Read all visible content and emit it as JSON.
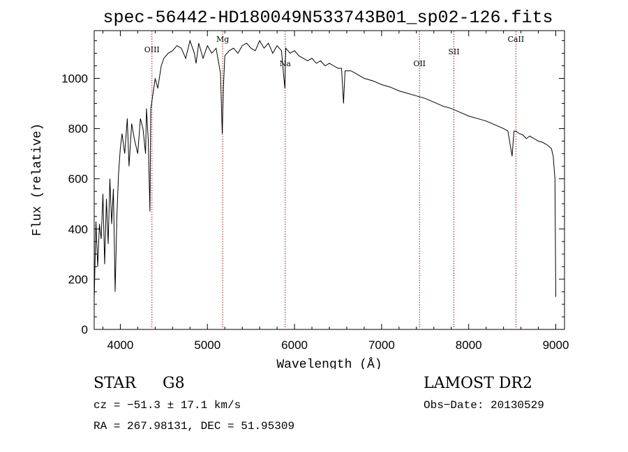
{
  "title": "spec-56442-HD180049N533743B01_sp02-126.fits",
  "chart_data": {
    "type": "line",
    "title": "spec-56442-HD180049N533743B01_sp02-126.fits",
    "xlabel": "Wavelength (Å)",
    "ylabel": "Flux (relative)",
    "xlim": [
      3700,
      9100
    ],
    "ylim": [
      0,
      1190
    ],
    "xticks": [
      4000,
      5000,
      6000,
      7000,
      8000,
      9000
    ],
    "yticks": [
      0,
      200,
      400,
      600,
      800,
      1000
    ],
    "grid": false,
    "line_color": "#000000",
    "marker_color": "#8b1a1a",
    "series": [
      {
        "x": [
          3700,
          3720,
          3740,
          3760,
          3780,
          3800,
          3820,
          3840,
          3860,
          3880,
          3900,
          3920,
          3940,
          3960,
          3980,
          4000,
          4020,
          4050,
          4080,
          4100,
          4130,
          4160,
          4200,
          4230,
          4260,
          4290,
          4300,
          4320,
          4340,
          4350,
          4380,
          4400,
          4430,
          4470,
          4500,
          4550,
          4600,
          4650,
          4700,
          4750,
          4800,
          4850,
          4870,
          4900,
          4950,
          5000,
          5050,
          5100,
          5150,
          5170,
          5183,
          5200,
          5250,
          5300,
          5350,
          5400,
          5450,
          5500,
          5550,
          5600,
          5650,
          5700,
          5750,
          5800,
          5850,
          5889,
          5896,
          5900,
          5950,
          6000,
          6050,
          6100,
          6150,
          6200,
          6250,
          6300,
          6350,
          6400,
          6450,
          6500,
          6540,
          6563,
          6580,
          6650,
          6700,
          6750,
          6800,
          6900,
          7000,
          7100,
          7200,
          7300,
          7400,
          7500,
          7600,
          7700,
          7800,
          7900,
          8000,
          8100,
          8200,
          8300,
          8400,
          8450,
          8498,
          8520,
          8542,
          8580,
          8620,
          8662,
          8700,
          8750,
          8800,
          8850,
          8900,
          8950,
          8970,
          8990,
          9000
        ],
        "y": [
          120,
          430,
          250,
          420,
          360,
          540,
          260,
          520,
          340,
          600,
          420,
          560,
          150,
          450,
          620,
          720,
          780,
          700,
          840,
          650,
          820,
          760,
          700,
          840,
          800,
          700,
          880,
          760,
          470,
          880,
          950,
          1000,
          960,
          1050,
          1080,
          1100,
          1110,
          1130,
          1120,
          1080,
          1150,
          1100,
          1060,
          1140,
          1080,
          1130,
          1100,
          1120,
          1020,
          780,
          960,
          1090,
          1110,
          1120,
          1100,
          1130,
          1140,
          1120,
          1110,
          1150,
          1120,
          1140,
          1100,
          1130,
          1110,
          960,
          1080,
          1120,
          1100,
          1110,
          1090,
          1080,
          1070,
          1080,
          1060,
          1070,
          1050,
          1060,
          1050,
          1040,
          1040,
          900,
          1030,
          1030,
          1020,
          1010,
          1000,
          990,
          975,
          965,
          950,
          940,
          930,
          920,
          905,
          890,
          880,
          865,
          850,
          840,
          830,
          815,
          800,
          790,
          690,
          790,
          790,
          780,
          775,
          760,
          770,
          760,
          750,
          745,
          735,
          720,
          690,
          600,
          130
        ]
      }
    ],
    "vertical_lines": [
      {
        "label": "OIII",
        "x": 4363
      },
      {
        "label": "Mg",
        "x": 5175
      },
      {
        "label": "Na",
        "x": 5893
      },
      {
        "label": "OII",
        "x": 7435
      },
      {
        "label": "SII",
        "x": 7830
      },
      {
        "label": "CaII",
        "x": 8542
      }
    ]
  },
  "info": {
    "object_class": "STAR",
    "subclass": "G8",
    "survey": "LAMOST DR2",
    "cz": "cz = −51.3 ± 17.1 km/s",
    "obs_date": "Obs−Date: 20130529",
    "radec": "RA = 267.98131, DEC =  51.95309"
  }
}
